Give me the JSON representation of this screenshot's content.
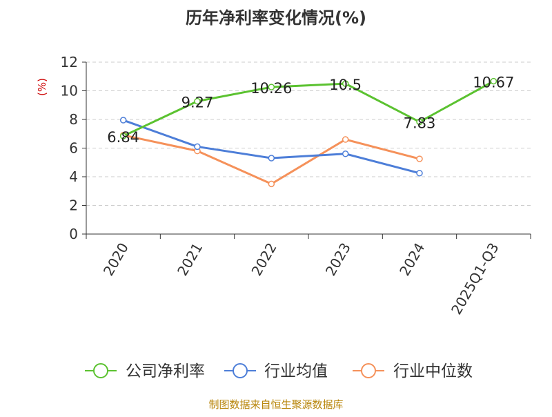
{
  "chart_data": {
    "type": "line",
    "title": "历年净利率变化情况(%)",
    "ylabel": "(%)",
    "xlabel": "",
    "categories": [
      "2020",
      "2021",
      "2022",
      "2023",
      "2024",
      "2025Q1-Q3"
    ],
    "ylim": [
      0,
      12
    ],
    "yticks": [
      "0",
      "2",
      "4",
      "6",
      "8",
      "10",
      "12"
    ],
    "grid": true,
    "legend_position": "bottom",
    "series": [
      {
        "name": "公司净利率",
        "color": "#5bc230",
        "values": [
          6.84,
          9.27,
          10.26,
          10.5,
          7.83,
          10.67
        ],
        "labels": [
          "6.84",
          "9.27",
          "10.26",
          "10.5",
          "7.83",
          "10.67"
        ]
      },
      {
        "name": "行业均值",
        "color": "#4d7ed8",
        "values": [
          7.95,
          6.1,
          5.3,
          5.6,
          4.25,
          null
        ]
      },
      {
        "name": "行业中位数",
        "color": "#f5915a",
        "values": [
          6.9,
          5.8,
          3.5,
          6.6,
          5.25,
          null
        ]
      }
    ]
  },
  "footer": {
    "source": "制图数据来自恒生聚源数据库"
  },
  "colors": {
    "title": "#333333",
    "axis": "#333333",
    "grid": "#cccccc",
    "ylabel": "#cc0000",
    "source": "#b8860b"
  }
}
